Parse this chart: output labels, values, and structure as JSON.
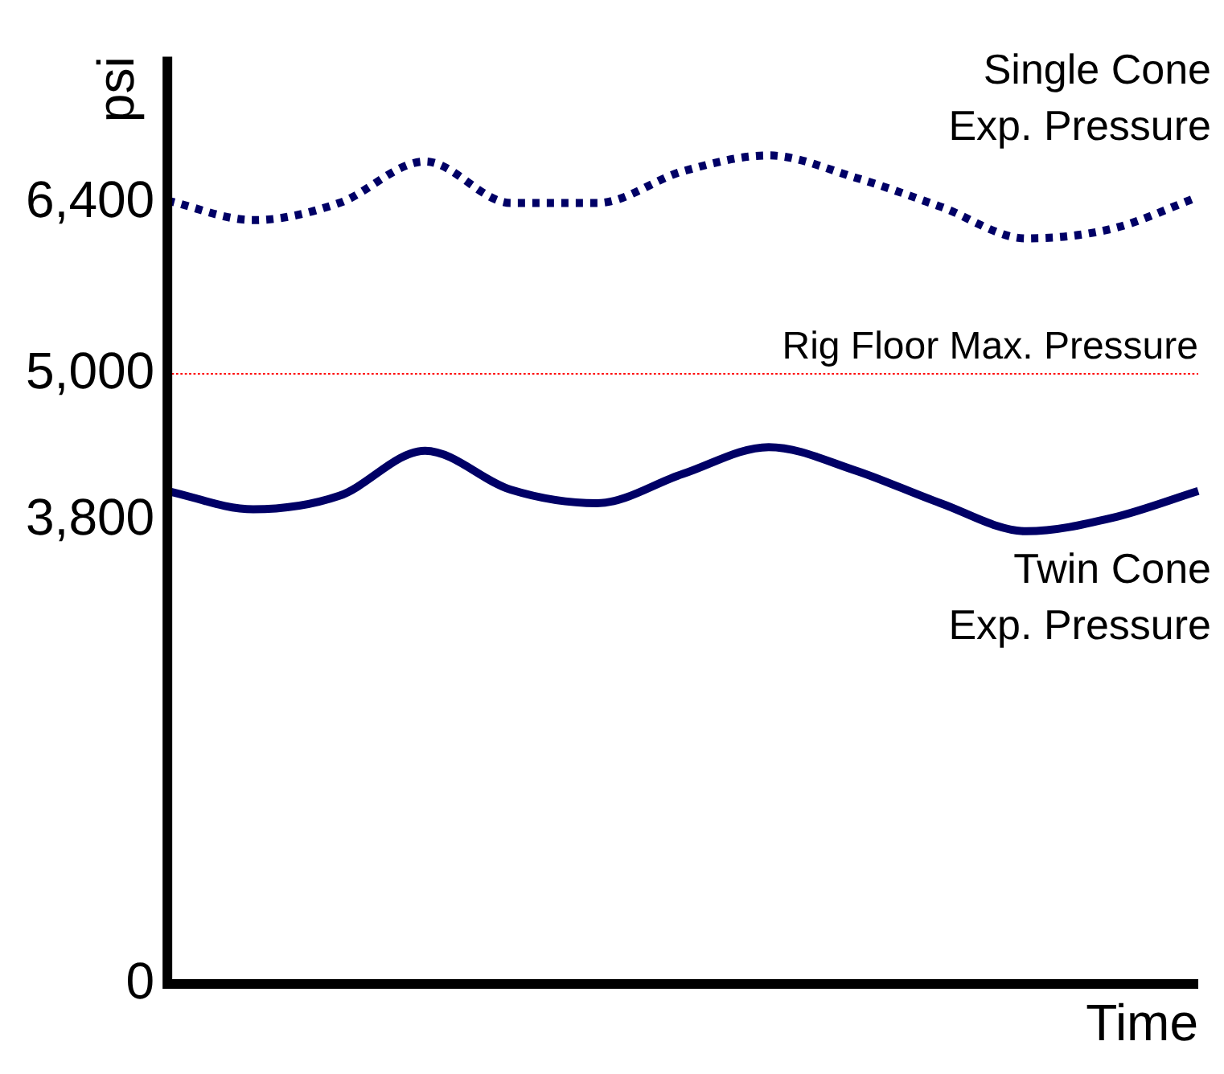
{
  "chart_data": {
    "type": "line",
    "ylabel": "psi",
    "xlabel": "Time",
    "categories": [
      null,
      null,
      null,
      null,
      null,
      null,
      null,
      null,
      null,
      null,
      null,
      null,
      null
    ],
    "series": [
      {
        "name": "Single Cone\nExp. Pressure",
        "color": "#000066",
        "line_style": "dotted",
        "values": [
          6420,
          6260,
          6400,
          6740,
          6400,
          6400,
          6660,
          6790,
          6610,
          6370,
          6110,
          6190,
          6450
        ]
      },
      {
        "name": "Twin Cone\nExp. Pressure",
        "color": "#000066",
        "line_style": "solid",
        "values": [
          4040,
          3890,
          4000,
          4370,
          4050,
          3940,
          4180,
          4400,
          4210,
          3940,
          3710,
          3820,
          4040
        ]
      }
    ],
    "ylim": [
      0,
      7600
    ],
    "yticks": [
      0,
      {
        "value": 3800,
        "label": "3,800"
      },
      {
        "value": 5000,
        "label": "5,000"
      },
      {
        "value": 6400,
        "label": "6,400"
      }
    ],
    "ref_lines": [
      {
        "axis": "y",
        "value": 5000,
        "label": "Rig Floor Max. Pressure",
        "color": "#ff0000",
        "line_style": "dotted"
      }
    ],
    "grid": false,
    "legend": false,
    "marker": "none"
  }
}
